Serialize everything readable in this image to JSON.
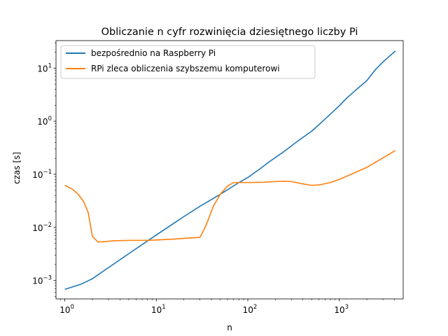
{
  "chart_data": {
    "type": "line",
    "title": "Obliczanie n cyfr rozwinięcia dziesiętnego liczby Pi",
    "xlabel": "n",
    "ylabel": "czas [s]",
    "xscale": "log",
    "yscale": "log",
    "xlim": [
      0.8,
      5000
    ],
    "ylim": [
      0.00045,
      33
    ],
    "x_ticks": [
      {
        "value": 1,
        "base": "10",
        "exp": "0"
      },
      {
        "value": 10,
        "base": "10",
        "exp": "1"
      },
      {
        "value": 100,
        "base": "10",
        "exp": "2"
      },
      {
        "value": 1000,
        "base": "10",
        "exp": "3"
      }
    ],
    "y_ticks": [
      {
        "value": 0.001,
        "base": "10",
        "exp": "−3"
      },
      {
        "value": 0.01,
        "base": "10",
        "exp": "−2"
      },
      {
        "value": 0.1,
        "base": "10",
        "exp": "−1"
      },
      {
        "value": 1,
        "base": "10",
        "exp": "0"
      },
      {
        "value": 10,
        "base": "10",
        "exp": "1"
      }
    ],
    "grid": false,
    "legend_position": "top-left",
    "series": [
      {
        "name": "bezpośrednio na Raspberry Pi",
        "color": "#1f77b4",
        "x": [
          1,
          1.5,
          2,
          3,
          5,
          10,
          20,
          30,
          50,
          80,
          100,
          130,
          170,
          250,
          350,
          500,
          700,
          1000,
          1200,
          1500,
          2000,
          2500,
          3000,
          3500,
          4100
        ],
        "y": [
          0.00068,
          0.00085,
          0.00108,
          0.00175,
          0.0032,
          0.0072,
          0.016,
          0.025,
          0.042,
          0.07,
          0.087,
          0.12,
          0.17,
          0.27,
          0.42,
          0.65,
          1.1,
          1.95,
          2.7,
          3.8,
          5.8,
          9.5,
          13.0,
          16.5,
          21.0
        ]
      },
      {
        "name": "RPi zleca obliczenia szybszemu komputerowi",
        "color": "#ff7f0e",
        "x": [
          1,
          1.2,
          1.4,
          1.6,
          1.8,
          2,
          2.3,
          2.7,
          3.5,
          5,
          8,
          10,
          15,
          20,
          30,
          35,
          42,
          50,
          60,
          70,
          80,
          100,
          150,
          200,
          250,
          300,
          400,
          500,
          600,
          800,
          1000,
          2000,
          4100
        ],
        "y": [
          0.062,
          0.053,
          0.042,
          0.031,
          0.019,
          0.0068,
          0.0053,
          0.0054,
          0.0056,
          0.0057,
          0.0057,
          0.0058,
          0.006,
          0.0062,
          0.0065,
          0.011,
          0.025,
          0.042,
          0.06,
          0.07,
          0.07,
          0.07,
          0.071,
          0.073,
          0.074,
          0.073,
          0.066,
          0.062,
          0.063,
          0.07,
          0.08,
          0.135,
          0.28
        ]
      }
    ]
  }
}
